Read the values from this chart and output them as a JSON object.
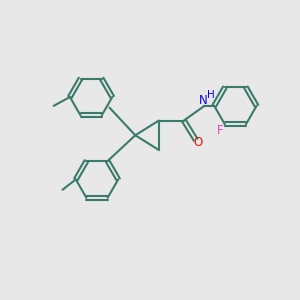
{
  "background_color": "#e8e8e8",
  "bond_color": "#3a7a6a",
  "bond_width": 1.5,
  "atom_colors": {
    "O": "#ee1100",
    "N": "#1100ee",
    "F": "#dd44bb",
    "H": "#1100ee",
    "C": "#3a7a6a"
  },
  "font_size_atom": 8.5,
  "font_size_H": 7.5
}
